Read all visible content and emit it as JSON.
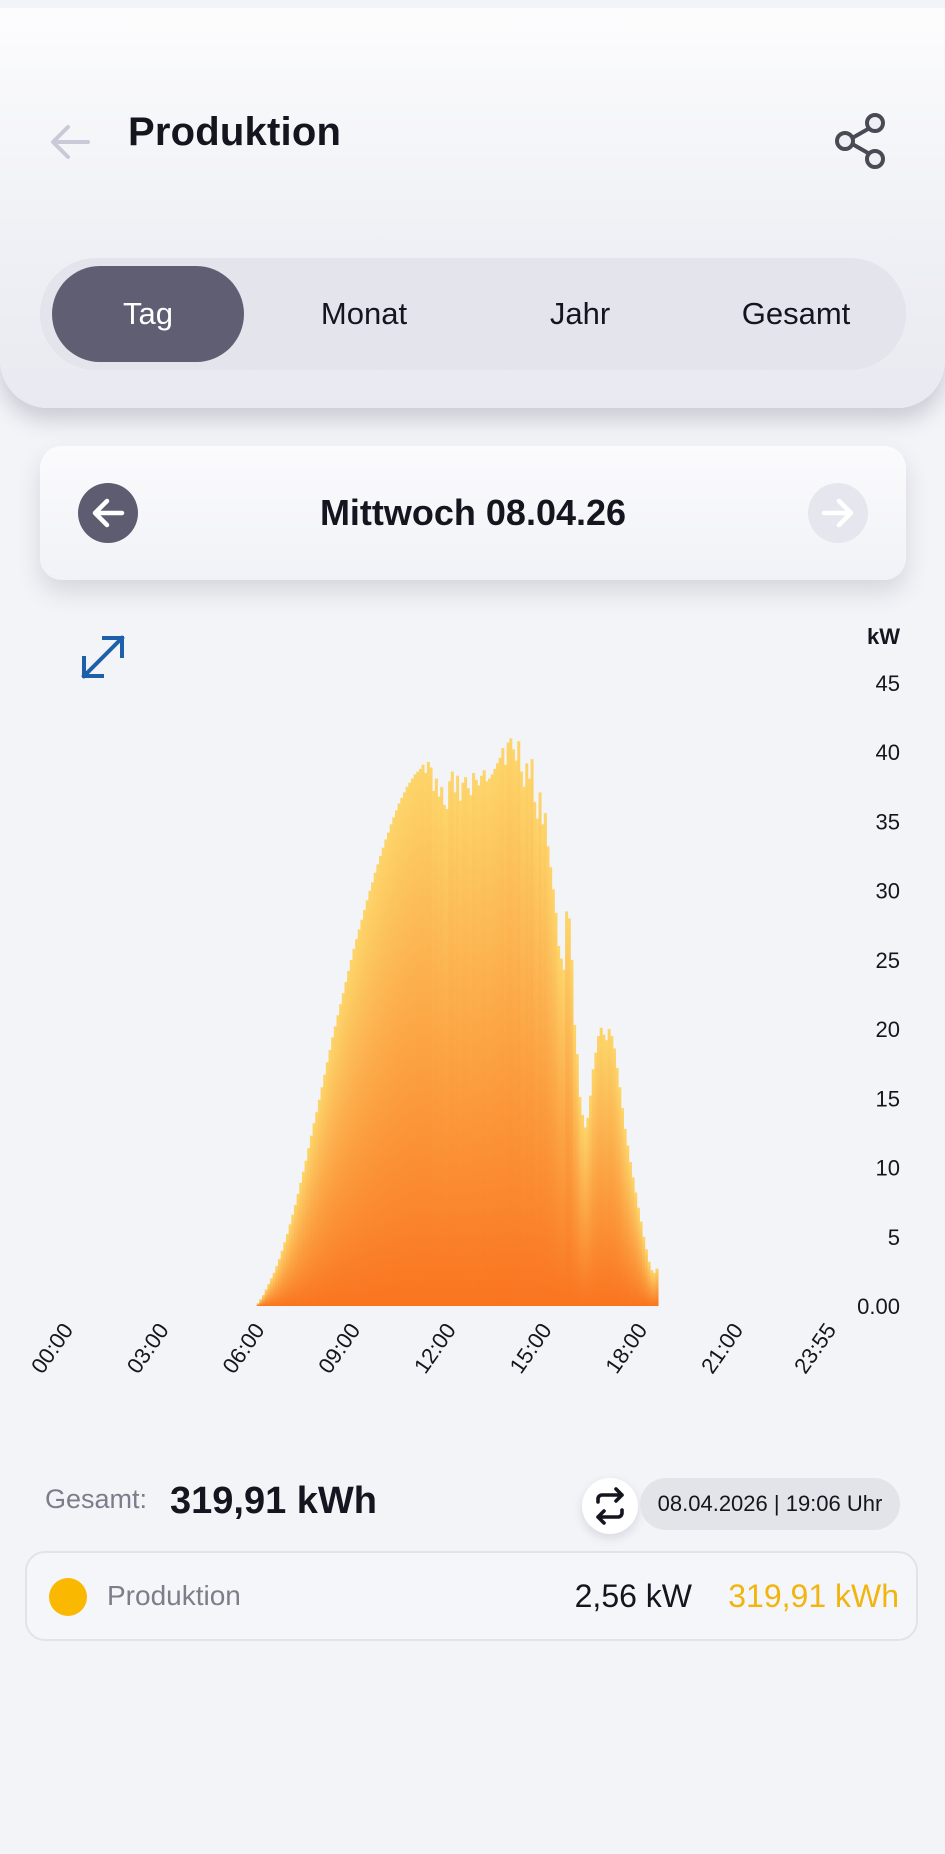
{
  "header": {
    "title": "Produktion"
  },
  "tabs": [
    {
      "label": "Tag",
      "active": true
    },
    {
      "label": "Monat",
      "active": false
    },
    {
      "label": "Jahr",
      "active": false
    },
    {
      "label": "Gesamt",
      "active": false
    }
  ],
  "date_nav": {
    "label": "Mittwoch 08.04.26"
  },
  "chart_data": {
    "type": "bar",
    "ylabel": "kW",
    "ylim": [
      0,
      45
    ],
    "yticks": [
      "0.00",
      "5",
      "10",
      "15",
      "20",
      "25",
      "30",
      "35",
      "40",
      "45"
    ],
    "xticks": [
      "00:00",
      "03:00",
      "06:00",
      "09:00",
      "12:00",
      "15:00",
      "18:00",
      "21:00",
      "23:55"
    ],
    "interval_minutes": 5,
    "series": [
      {
        "start_time": "06:10",
        "values": [
          0.2,
          0.5,
          0.8,
          1.2,
          1.6,
          2.0,
          2.4,
          2.9,
          3.4,
          4.0,
          4.6,
          5.2,
          5.9,
          6.6,
          7.3,
          8.1,
          8.9,
          9.7,
          10.5,
          11.4,
          12.3,
          13.2,
          14.0,
          14.9,
          15.8,
          16.7,
          17.6,
          18.5,
          19.4,
          20.2,
          21.0,
          21.8,
          22.6,
          23.4,
          24.2,
          25.0,
          25.8,
          26.5,
          27.2,
          27.9,
          28.6,
          29.3,
          30.0,
          30.6,
          31.3,
          31.9,
          32.5,
          33.1,
          33.7,
          34.2,
          34.8,
          35.3,
          35.8,
          36.3,
          36.7,
          37.1,
          37.5,
          37.8,
          38.1,
          38.4,
          38.6,
          38.8,
          39.1,
          38.5,
          39.3,
          38.9,
          37.2,
          38.1,
          36.8,
          37.5,
          36.2,
          35.9,
          37.9,
          38.6,
          37.1,
          38.3,
          36.5,
          37.8,
          38.2,
          37.4,
          36.9,
          38.5,
          38.0,
          37.6,
          38.3,
          38.7,
          37.9,
          38.1,
          38.4,
          38.8,
          39.2,
          39.6,
          40.3,
          39.1,
          40.7,
          41.0,
          40.2,
          39.4,
          40.8,
          38.6,
          37.5,
          39.2,
          38.1,
          39.5,
          36.4,
          35.2,
          37.1,
          34.8,
          35.6,
          33.2,
          31.7,
          30.1,
          28.4,
          26.0,
          25.1,
          24.3,
          28.5,
          28.0,
          25.0,
          20.3,
          18.2,
          15.1,
          13.8,
          12.9,
          13.6,
          15.2,
          17.1,
          18.3,
          19.5,
          20.1,
          19.6,
          19.2,
          20.0,
          19.5,
          18.6,
          17.2,
          15.8,
          14.3,
          12.8,
          11.6,
          10.4,
          9.3,
          8.2,
          7.1,
          6.1,
          5.0,
          4.1,
          3.2,
          2.6,
          2.4,
          2.7
        ]
      }
    ],
    "colors": {
      "bar_top": "#fdd56a",
      "bar_bottom": "#fa741f"
    }
  },
  "summary": {
    "total_label": "Gesamt:",
    "total_value": "319,91 kWh",
    "timestamp": "08.04.2026 | 19:06 Uhr"
  },
  "legend": {
    "name": "Produktion",
    "power": "2,56 kW",
    "energy": "319,91 kWh",
    "color": "#fbb800"
  },
  "icons": {
    "back": "arrow-left-icon",
    "share": "share-icon",
    "prev": "arrow-left-circle-icon",
    "next": "arrow-right-circle-icon",
    "expand": "expand-diagonal-icon",
    "refresh": "refresh-swap-icon"
  }
}
